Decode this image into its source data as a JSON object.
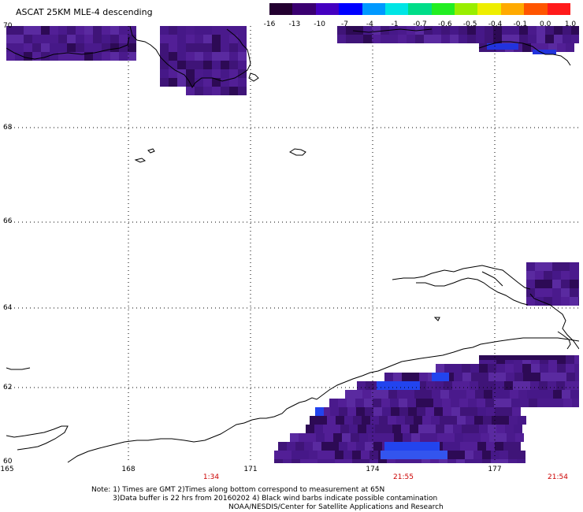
{
  "title": "ASCAT 25KM MLE-4 descending",
  "colorbar": {
    "labels": [
      "-16",
      "-13",
      "-10",
      "-7",
      "-4",
      "-1",
      "-0.7",
      "-0.6",
      "-0.5",
      "-0.4",
      "-0.1",
      "0.0",
      "1.0"
    ],
    "colors": [
      "#230030",
      "#3a0070",
      "#4400c0",
      "#0000ff",
      "#0099ff",
      "#00e5e5",
      "#00dd88",
      "#22ee22",
      "#99ee00",
      "#eeee00",
      "#ffaa00",
      "#ff5500",
      "#ff1a1a"
    ]
  },
  "lat_labels": [
    "70",
    "68",
    "66",
    "64",
    "62",
    "60"
  ],
  "lon_labels": [
    "165",
    "168",
    "171",
    "174",
    "177"
  ],
  "time_labels": [
    "1:34",
    "21:55",
    "21:54"
  ],
  "notes": {
    "line1": "Note: 1) Times are GMT 2)Times along bottom correspond to measurement at 65N",
    "line2": "3)Data buffer is 22 hrs from 20160202 4) Black wind barbs indicate possible contamination",
    "line3": "NOAA/NESDIS/Center for Satellite Applications and Research"
  },
  "data_color": "#4a1a8c"
}
